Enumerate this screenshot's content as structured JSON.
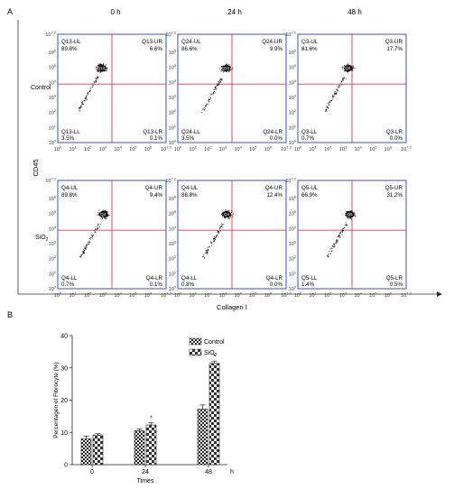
{
  "panel_a": {
    "letter": "A",
    "time_labels": [
      "0 h",
      "24 h",
      "48 h"
    ],
    "row_labels": [
      "Control",
      "SiO",
      "2"
    ],
    "y_axis_label": "CD45",
    "x_axis_label": "Collagen Ⅰ",
    "colors": {
      "frame": "#3a4fd0",
      "gate": "#e03a4a",
      "dots": "#111111"
    },
    "tick_labels": [
      "10",
      "0",
      "10",
      "1",
      "10",
      "2",
      "10",
      "3",
      "10",
      "4",
      "10",
      "5",
      "10",
      "6",
      "10",
      "7.2"
    ],
    "cells": [
      {
        "ul": [
          "Q13-UL",
          "89.8%"
        ],
        "ur": [
          "Q13-UR",
          "6.6%"
        ],
        "ll": [
          "Q13-LL",
          "3.5%"
        ],
        "lr": [
          "Q13-LR",
          "0.1%"
        ],
        "gate": "Q13"
      },
      {
        "ul": [
          "Q24-UL",
          "86.6%"
        ],
        "ur": [
          "Q24-UR",
          "9.9%"
        ],
        "ll": [
          "Q24-LL",
          "3.5%"
        ],
        "lr": [
          "Q24-LR",
          "0.0%"
        ],
        "gate": "Q24"
      },
      {
        "ul": [
          "Q3-UL",
          "81.6%"
        ],
        "ur": [
          "Q3-UR",
          "17.7%"
        ],
        "ll": [
          "Q3-LL",
          "0.7%"
        ],
        "lr": [
          "Q3-LR",
          "0.0%"
        ],
        "gate": "Q3"
      },
      {
        "ul": [
          "Q4-UL",
          "89.8%"
        ],
        "ur": [
          "Q4-UR",
          "9.4%"
        ],
        "ll": [
          "Q4-LL",
          "0.7%"
        ],
        "lr": [
          "Q4-LR",
          "0.1%"
        ],
        "gate": "Q4"
      },
      {
        "ul": [
          "Q4-UL",
          "86.8%"
        ],
        "ur": [
          "Q4-UR",
          "12.4%"
        ],
        "ll": [
          "Q4-LL",
          "0.8%"
        ],
        "lr": [
          "Q4-LR",
          "0.0%"
        ],
        "gate": "Q4"
      },
      {
        "ul": [
          "Q5-UL",
          "66.9%"
        ],
        "ur": [
          "Q5-UR",
          "31.2%"
        ],
        "ll": [
          "Q5-LL",
          "1.4%"
        ],
        "lr": [
          "Q5-LR",
          "0.5%"
        ],
        "gate": "Q5"
      }
    ]
  },
  "panel_b": {
    "letter": "B",
    "time_unit": "h",
    "significance_marker": "*"
  },
  "chart_data": {
    "type": "bar",
    "title": "",
    "xlabel": "Times",
    "ylabel": "Percentagen of Fibrocyte (%)",
    "categories": [
      "0",
      "24",
      "48"
    ],
    "ylim": [
      0,
      40
    ],
    "yticks": [
      0,
      10,
      20,
      30,
      40
    ],
    "series": [
      {
        "name": "Control",
        "values": [
          8.0,
          10.5,
          17.2
        ],
        "errors": [
          0.8,
          0.6,
          1.3
        ],
        "pattern": "checker-fine"
      },
      {
        "name": "SiO2",
        "values": [
          9.2,
          12.3,
          31.4
        ],
        "errors": [
          0.4,
          0.7,
          0.7
        ],
        "pattern": "checker-coarse"
      }
    ],
    "significance": [
      "",
      "*",
      "*"
    ],
    "legend": {
      "placement": "top-right",
      "entries": [
        "Control",
        "SiO",
        "2"
      ]
    }
  }
}
